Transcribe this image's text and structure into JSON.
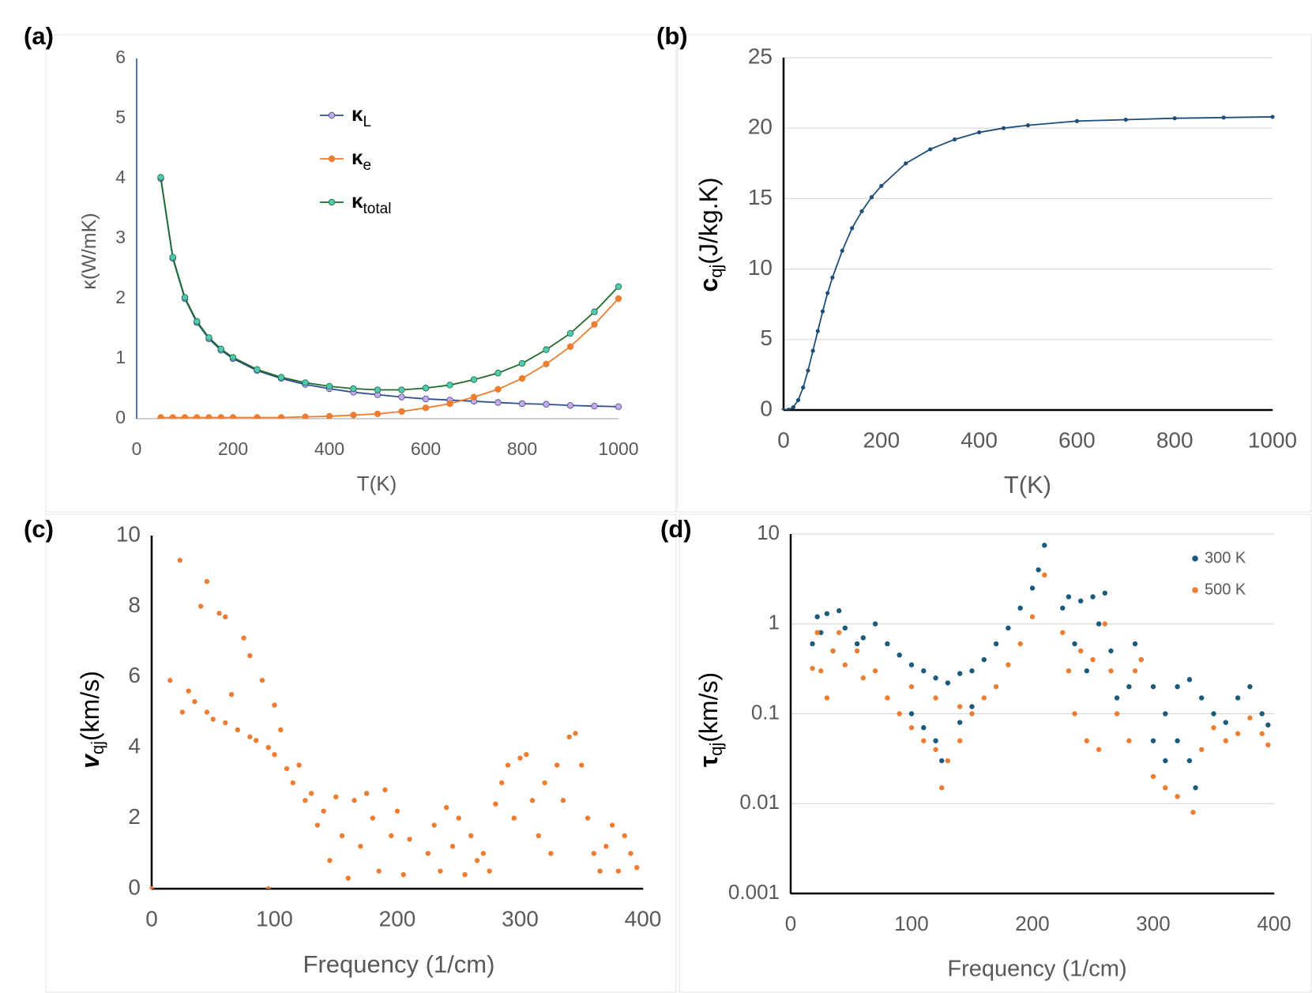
{
  "chart_data": [
    {
      "type": "line",
      "panel_label": "(a)",
      "xlabel": "T(K)",
      "ylabel": {
        "text": "κ(W/mK)"
      },
      "x": [
        50,
        75,
        100,
        125,
        150,
        175,
        200,
        250,
        300,
        350,
        400,
        450,
        500,
        550,
        600,
        650,
        700,
        750,
        800,
        850,
        900,
        950,
        1000
      ],
      "xlim": [
        0,
        1000
      ],
      "xticks": [
        0,
        200,
        400,
        600,
        800,
        1000
      ],
      "ylim": [
        0,
        6
      ],
      "yticks": [
        0,
        1,
        2,
        3,
        4,
        5,
        6
      ],
      "grid": false,
      "legend": "top",
      "series": [
        {
          "name": "κ",
          "name_sub": "L",
          "color": "#2f4f8f",
          "marker_color": "#c9a8e8",
          "values": [
            4.0,
            2.67,
            2.0,
            1.6,
            1.33,
            1.14,
            1.0,
            0.8,
            0.67,
            0.57,
            0.5,
            0.44,
            0.4,
            0.36,
            0.33,
            0.31,
            0.29,
            0.27,
            0.25,
            0.24,
            0.22,
            0.21,
            0.2
          ]
        },
        {
          "name": "κ",
          "name_sub": "e",
          "color": "#ed7d31",
          "marker_color": "#ed7d31",
          "values": [
            0.02,
            0.02,
            0.02,
            0.02,
            0.02,
            0.02,
            0.02,
            0.02,
            0.02,
            0.03,
            0.04,
            0.06,
            0.08,
            0.12,
            0.18,
            0.25,
            0.36,
            0.49,
            0.67,
            0.91,
            1.2,
            1.57,
            2.0
          ]
        },
        {
          "name": "κ",
          "name_sub": "total",
          "color": "#1e6b2e",
          "marker_color": "#4fc9b5",
          "values": [
            4.02,
            2.69,
            2.02,
            1.62,
            1.35,
            1.16,
            1.02,
            0.82,
            0.69,
            0.6,
            0.54,
            0.5,
            0.48,
            0.48,
            0.51,
            0.56,
            0.65,
            0.76,
            0.92,
            1.15,
            1.42,
            1.78,
            2.2
          ]
        }
      ]
    },
    {
      "type": "line",
      "panel_label": "(b)",
      "xlabel": "T(K)",
      "ylabel": {
        "text": "c",
        "sub": "qj",
        "unit": "(J/kg.K)"
      },
      "x": [
        0,
        10,
        20,
        30,
        40,
        50,
        60,
        70,
        80,
        90,
        100,
        120,
        140,
        160,
        180,
        200,
        250,
        300,
        350,
        400,
        450,
        500,
        600,
        700,
        800,
        900,
        1000
      ],
      "xlim": [
        0,
        1000
      ],
      "xticks": [
        0,
        200,
        400,
        600,
        800,
        1000
      ],
      "ylim": [
        0,
        25
      ],
      "yticks": [
        0,
        5,
        10,
        15,
        20,
        25
      ],
      "grid": true,
      "series": [
        {
          "color": "#1f4e79",
          "marker_color": "#1f4e79",
          "values": [
            0,
            0.02,
            0.2,
            0.7,
            1.6,
            2.8,
            4.2,
            5.6,
            7.0,
            8.3,
            9.4,
            11.3,
            12.9,
            14.1,
            15.1,
            15.9,
            17.5,
            18.5,
            19.2,
            19.7,
            20.0,
            20.2,
            20.5,
            20.6,
            20.7,
            20.75,
            20.8
          ]
        }
      ]
    },
    {
      "type": "scatter",
      "panel_label": "(c)",
      "xlabel": "Frequency (1/cm)",
      "ylabel": {
        "text": "v",
        "sub": "qj",
        "unit": "(km/s)"
      },
      "xlim": [
        0,
        400
      ],
      "xticks": [
        0,
        100,
        200,
        300,
        400
      ],
      "ylim": [
        0,
        10
      ],
      "yticks": [
        0,
        2,
        4,
        6,
        8,
        10
      ],
      "grid": false,
      "series": [
        {
          "color": "#ed7d31",
          "x": [
            0,
            15,
            23,
            25,
            30,
            35,
            40,
            45,
            45,
            50,
            55,
            60,
            60,
            65,
            70,
            75,
            80,
            80,
            85,
            90,
            95,
            95,
            100,
            100,
            105,
            110,
            115,
            120,
            125,
            130,
            135,
            140,
            145,
            150,
            155,
            160,
            165,
            170,
            175,
            180,
            185,
            190,
            195,
            200,
            205,
            210,
            225,
            230,
            235,
            240,
            245,
            250,
            255,
            260,
            265,
            270,
            275,
            280,
            285,
            290,
            295,
            300,
            305,
            310,
            315,
            320,
            325,
            330,
            335,
            340,
            345,
            350,
            355,
            360,
            365,
            370,
            375,
            380,
            385,
            390,
            395
          ],
          "values": [
            0,
            5.9,
            9.3,
            5.0,
            5.6,
            5.3,
            8.0,
            8.7,
            5.0,
            4.8,
            7.8,
            4.7,
            7.7,
            5.5,
            4.5,
            7.1,
            4.3,
            6.6,
            4.2,
            5.9,
            4.0,
            0,
            5.2,
            3.8,
            4.5,
            3.4,
            3.0,
            3.5,
            2.5,
            2.7,
            1.8,
            2.2,
            0.8,
            2.6,
            1.5,
            0.3,
            2.5,
            1.2,
            2.7,
            2.0,
            0.5,
            2.8,
            1.5,
            2.2,
            0.4,
            1.4,
            1.0,
            1.8,
            0.5,
            2.3,
            1.2,
            2.0,
            0.4,
            1.5,
            0.8,
            1.0,
            0.5,
            2.4,
            3.0,
            3.5,
            2.0,
            3.7,
            3.8,
            2.5,
            1.5,
            3.0,
            1.0,
            3.5,
            2.5,
            4.3,
            4.4,
            3.5,
            2.0,
            1.0,
            0.5,
            1.2,
            1.8,
            0.5,
            1.5,
            1.0,
            0.6
          ]
        }
      ]
    },
    {
      "type": "scatter",
      "panel_label": "(d)",
      "xlabel": "Frequency (1/cm)",
      "ylabel": {
        "text": "τ",
        "sub": "qj",
        "unit": "(km/s)"
      },
      "xlim": [
        0,
        400
      ],
      "xticks": [
        0,
        100,
        200,
        300,
        400
      ],
      "ylim": [
        0.001,
        10
      ],
      "yticks": [
        0.001,
        0.01,
        0.1,
        1,
        10
      ],
      "log_y": true,
      "grid": true,
      "legend": "upper right",
      "series": [
        {
          "name": "300 K",
          "color": "#1a5a7a",
          "x": [
            18,
            22,
            25,
            30,
            35,
            40,
            45,
            55,
            60,
            70,
            80,
            90,
            100,
            110,
            120,
            130,
            140,
            150,
            160,
            170,
            180,
            190,
            200,
            205,
            210,
            100,
            110,
            120,
            125,
            140,
            150,
            225,
            230,
            235,
            240,
            245,
            250,
            255,
            260,
            265,
            270,
            280,
            285,
            290,
            300,
            310,
            320,
            330,
            335,
            320,
            330,
            340,
            350,
            360,
            370,
            380,
            390,
            395,
            300,
            310
          ],
          "values": [
            0.6,
            1.2,
            0.8,
            1.3,
            0.5,
            1.4,
            0.9,
            0.6,
            0.7,
            1.0,
            0.6,
            0.45,
            0.35,
            0.3,
            0.25,
            0.22,
            0.28,
            0.3,
            0.4,
            0.6,
            0.9,
            1.5,
            2.5,
            4,
            7.5,
            0.1,
            0.07,
            0.05,
            0.03,
            0.08,
            0.12,
            1.5,
            2.0,
            0.6,
            1.8,
            0.3,
            2.0,
            1.0,
            2.2,
            0.5,
            0.15,
            0.2,
            0.6,
            0.4,
            0.2,
            0.1,
            0.05,
            0.03,
            0.015,
            0.2,
            0.24,
            0.15,
            0.1,
            0.08,
            0.15,
            0.2,
            0.1,
            0.075,
            0.05,
            0.03
          ]
        },
        {
          "name": "500 K",
          "color": "#ed7d31",
          "x": [
            18,
            22,
            25,
            30,
            35,
            40,
            45,
            55,
            60,
            70,
            80,
            90,
            100,
            110,
            120,
            125,
            130,
            140,
            150,
            160,
            170,
            180,
            190,
            200,
            210,
            100,
            120,
            140,
            225,
            230,
            235,
            240,
            245,
            250,
            255,
            260,
            265,
            270,
            280,
            285,
            290,
            300,
            310,
            320,
            333,
            340,
            350,
            360,
            370,
            380,
            390,
            395
          ],
          "values": [
            0.32,
            0.8,
            0.3,
            0.15,
            0.5,
            0.8,
            0.35,
            0.5,
            0.25,
            0.3,
            0.15,
            0.1,
            0.07,
            0.05,
            0.04,
            0.015,
            0.03,
            0.05,
            0.1,
            0.15,
            0.2,
            0.35,
            0.6,
            1.2,
            3.5,
            0.2,
            0.15,
            0.12,
            0.8,
            0.3,
            0.1,
            0.5,
            0.05,
            0.4,
            0.04,
            1.0,
            0.3,
            0.1,
            0.05,
            0.3,
            0.4,
            0.02,
            0.015,
            0.012,
            0.008,
            0.04,
            0.07,
            0.05,
            0.06,
            0.09,
            0.06,
            0.045
          ]
        }
      ]
    }
  ]
}
